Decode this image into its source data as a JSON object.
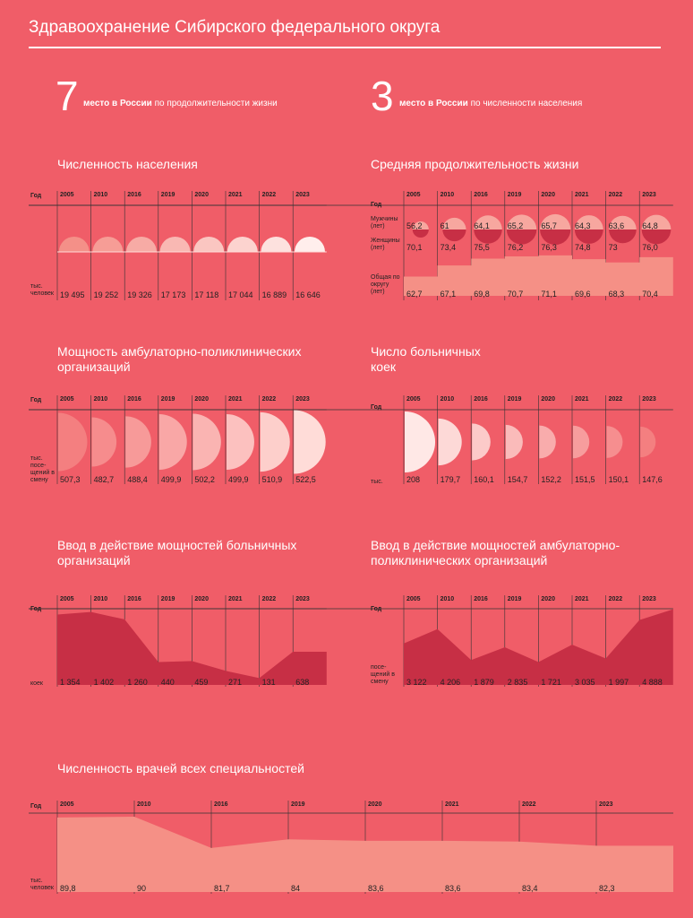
{
  "header": {
    "title": "Здравоохранение Сибирского федерального округа"
  },
  "highlights": [
    {
      "number": "7",
      "bold": "место в России",
      "text": "по продолжительности жизни"
    },
    {
      "number": "3",
      "bold": "место в России",
      "text": "по численности населения"
    }
  ],
  "colors": {
    "background": "#f05d68",
    "dark": "#c72f45",
    "light": "#f59086"
  },
  "chart_data": [
    {
      "type": "semicircle",
      "title": "Численность населения",
      "row_label": "Год",
      "unit_label": "тыс. человек",
      "x": [
        "2005",
        "2010",
        "2016",
        "2019",
        "2020",
        "2021",
        "2022",
        "2023"
      ],
      "values": [
        "19 495",
        "19 252",
        "19 326",
        "17 173",
        "17 118",
        "17 044",
        "16 889",
        "16 646"
      ]
    },
    {
      "type": "semicircle",
      "title": "Средняя продолжительность жизни",
      "row_label": "Год",
      "x": [
        "2005",
        "2010",
        "2016",
        "2019",
        "2020",
        "2021",
        "2022",
        "2023"
      ],
      "series": [
        {
          "name": "Мужчины (лет)",
          "values": [
            "56,2",
            "61",
            "64,1",
            "65,2",
            "65,7",
            "64,3",
            "63,6",
            "64,8"
          ]
        },
        {
          "name": "Женщины (лет)",
          "values": [
            "70,1",
            "73,4",
            "75,5",
            "76,2",
            "76,3",
            "74,8",
            "73",
            "76,0"
          ]
        },
        {
          "name": "Общая по округу (лет)",
          "values": [
            "62,7",
            "67,1",
            "69,8",
            "70,7",
            "71,1",
            "69,6",
            "68,3",
            "70,4"
          ]
        }
      ]
    },
    {
      "type": "semicircle",
      "title": "Мощность амбулаторно-поликлинических организаций",
      "row_label": "Год",
      "unit_label": "тыс. посе- щений в смену",
      "x": [
        "2005",
        "2010",
        "2016",
        "2019",
        "2020",
        "2021",
        "2022",
        "2023"
      ],
      "values": [
        "507,3",
        "482,7",
        "488,4",
        "499,9",
        "502,2",
        "499,9",
        "510,9",
        "522,5"
      ]
    },
    {
      "type": "semicircle",
      "title": "Число больничных коек",
      "row_label": "Год",
      "unit_label": "тыс.",
      "x": [
        "2005",
        "2010",
        "2016",
        "2019",
        "2020",
        "2021",
        "2022",
        "2023"
      ],
      "values": [
        "208",
        "179,7",
        "160,1",
        "154,7",
        "152,2",
        "151,5",
        "150,1",
        "147,6"
      ]
    },
    {
      "type": "area",
      "title": "Ввод в действие мощностей больничных организаций",
      "row_label": "Год",
      "unit_label": "коек",
      "x": [
        "2005",
        "2010",
        "2016",
        "2019",
        "2020",
        "2021",
        "2022",
        "2023"
      ],
      "values": [
        "1 354",
        "1 402",
        "1 260",
        "440",
        "459",
        "271",
        "131",
        "638"
      ]
    },
    {
      "type": "area",
      "title": "Ввод в действие мощностей амбулаторно-поликлинических организаций",
      "row_label": "Год",
      "unit_label": "посе- щений в смену",
      "x": [
        "2005",
        "2010",
        "2016",
        "2019",
        "2020",
        "2021",
        "2022",
        "2023"
      ],
      "values": [
        "3 122",
        "4 206",
        "1 879",
        "2 835",
        "1 721",
        "3 035",
        "1 997",
        "4 888"
      ]
    },
    {
      "type": "area",
      "title": "Численность врачей всех специальностей",
      "row_label": "Год",
      "unit_label": "тыс. человек",
      "x": [
        "2005",
        "2010",
        "2016",
        "2019",
        "2020",
        "2021",
        "2022",
        "2023"
      ],
      "values": [
        "89,8",
        "90",
        "81,7",
        "84",
        "83,6",
        "83,6",
        "83,4",
        "82,3"
      ]
    }
  ]
}
